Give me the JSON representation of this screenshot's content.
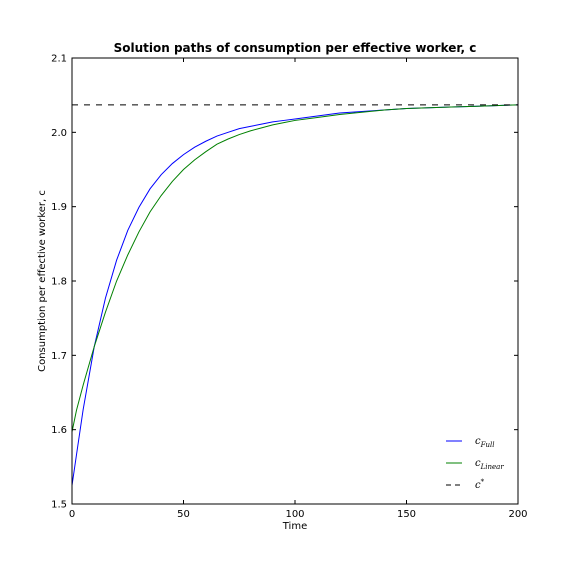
{
  "chart_data": {
    "type": "line",
    "title": "Solution paths of consumption per effective worker, c",
    "xlabel": "Time",
    "ylabel": "Consumption per effective worker, c",
    "xlim": [
      0,
      200
    ],
    "ylim": [
      1.5,
      2.1
    ],
    "xticks": [
      0,
      50,
      100,
      150,
      200
    ],
    "yticks": [
      1.5,
      1.6,
      1.7,
      1.8,
      1.9,
      2.0,
      2.1
    ],
    "xtick_labels": [
      "0",
      "50",
      "100",
      "150",
      "200"
    ],
    "ytick_labels": [
      "1.5",
      "1.6",
      "1.7",
      "1.8",
      "1.9",
      "2.0",
      "2.1"
    ],
    "grid": false,
    "legend_position": "bottom-right",
    "series": [
      {
        "name": "c",
        "subscript": "Full",
        "color": "#0000ff",
        "style": "solid",
        "x": [
          0,
          2,
          5,
          10,
          15,
          20,
          25,
          30,
          35,
          40,
          45,
          50,
          55,
          60,
          65,
          70,
          75,
          80,
          85,
          90,
          95,
          100,
          110,
          120,
          130,
          140,
          150,
          160,
          170,
          180,
          190,
          200
        ],
        "values": [
          1.525,
          1.566,
          1.627,
          1.712,
          1.777,
          1.828,
          1.868,
          1.899,
          1.924,
          1.943,
          1.958,
          1.97,
          1.98,
          1.988,
          1.995,
          2.0,
          2.005,
          2.008,
          2.011,
          2.014,
          2.016,
          2.018,
          2.022,
          2.026,
          2.028,
          2.03,
          2.032,
          2.033,
          2.034,
          2.035,
          2.036,
          2.037
        ]
      },
      {
        "name": "c",
        "subscript": "Linear",
        "color": "#008000",
        "style": "solid",
        "x": [
          0,
          2,
          5,
          10,
          15,
          20,
          25,
          30,
          35,
          40,
          45,
          50,
          55,
          60,
          65,
          70,
          75,
          80,
          85,
          90,
          95,
          100,
          110,
          120,
          130,
          140,
          150,
          160,
          170,
          180,
          190,
          200
        ],
        "values": [
          1.597,
          1.626,
          1.66,
          1.712,
          1.758,
          1.8,
          1.835,
          1.866,
          1.893,
          1.915,
          1.934,
          1.95,
          1.963,
          1.974,
          1.984,
          1.991,
          1.997,
          2.002,
          2.006,
          2.01,
          2.013,
          2.016,
          2.02,
          2.024,
          2.027,
          2.03,
          2.032,
          2.033,
          2.034,
          2.035,
          2.036,
          2.037
        ]
      },
      {
        "name": "c",
        "superscript": "*",
        "color": "#000000",
        "style": "dashed",
        "x": [
          0,
          200
        ],
        "values": [
          2.037,
          2.037
        ]
      }
    ]
  }
}
